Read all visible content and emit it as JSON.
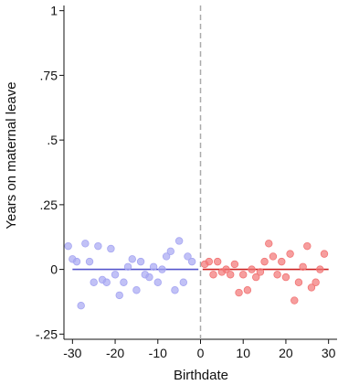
{
  "chart_data": {
    "type": "scatter",
    "xlabel": "Birthdate",
    "ylabel": "Years on maternal leave",
    "xlim": [
      -32,
      32
    ],
    "ylim": [
      -0.27,
      1.02
    ],
    "x_ticks": [
      -30,
      -20,
      -10,
      0,
      10,
      20,
      30
    ],
    "x_tick_labels": [
      "-30",
      "-20",
      "-10",
      "0",
      "10",
      "20",
      "30"
    ],
    "y_ticks": [
      -0.25,
      0,
      0.25,
      0.5,
      0.75,
      1
    ],
    "y_tick_labels": [
      "-.25",
      "0",
      ".25",
      ".5",
      ".75",
      "1"
    ],
    "grid": false,
    "cutoff_line": {
      "x": 0,
      "style": "dashed",
      "color": "#aaaaaa"
    },
    "series": [
      {
        "color": "#a6a6f2",
        "fit_line": {
          "x": [
            -30,
            -0.5
          ],
          "y": [
            0,
            0
          ],
          "color": "#5555cc"
        },
        "points": [
          [
            -31,
            0.09
          ],
          [
            -30,
            0.04
          ],
          [
            -29,
            0.03
          ],
          [
            -28,
            -0.14
          ],
          [
            -27,
            0.1
          ],
          [
            -26,
            0.03
          ],
          [
            -25,
            -0.05
          ],
          [
            -24,
            0.09
          ],
          [
            -23,
            -0.04
          ],
          [
            -22,
            -0.05
          ],
          [
            -21,
            0.08
          ],
          [
            -20,
            -0.02
          ],
          [
            -19,
            -0.1
          ],
          [
            -18,
            -0.05
          ],
          [
            -17,
            0.01
          ],
          [
            -16,
            0.04
          ],
          [
            -15,
            -0.08
          ],
          [
            -14,
            0.03
          ],
          [
            -13,
            -0.02
          ],
          [
            -12,
            -0.03
          ],
          [
            -11,
            0.01
          ],
          [
            -10,
            -0.05
          ],
          [
            -9,
            0.0
          ],
          [
            -8,
            0.05
          ],
          [
            -7,
            0.07
          ],
          [
            -6,
            -0.08
          ],
          [
            -5,
            0.11
          ],
          [
            -4,
            -0.05
          ],
          [
            -3,
            0.05
          ],
          [
            -2,
            0.03
          ]
        ]
      },
      {
        "color": "#f27575",
        "fit_line": {
          "x": [
            0.5,
            30
          ],
          "y": [
            0,
            0
          ],
          "color": "#cc2222"
        },
        "points": [
          [
            1,
            0.02
          ],
          [
            2,
            0.03
          ],
          [
            3,
            -0.02
          ],
          [
            4,
            0.03
          ],
          [
            5,
            -0.01
          ],
          [
            6,
            0.0
          ],
          [
            7,
            -0.02
          ],
          [
            8,
            0.02
          ],
          [
            9,
            -0.09
          ],
          [
            10,
            -0.02
          ],
          [
            11,
            -0.08
          ],
          [
            12,
            0.0
          ],
          [
            13,
            -0.03
          ],
          [
            14,
            -0.01
          ],
          [
            15,
            0.03
          ],
          [
            16,
            0.1
          ],
          [
            17,
            0.05
          ],
          [
            18,
            -0.02
          ],
          [
            19,
            0.03
          ],
          [
            20,
            -0.03
          ],
          [
            21,
            0.06
          ],
          [
            22,
            -0.12
          ],
          [
            23,
            -0.05
          ],
          [
            24,
            0.01
          ],
          [
            25,
            0.09
          ],
          [
            26,
            -0.07
          ],
          [
            27,
            -0.05
          ],
          [
            28,
            0.0
          ],
          [
            29,
            0.06
          ]
        ]
      }
    ]
  }
}
